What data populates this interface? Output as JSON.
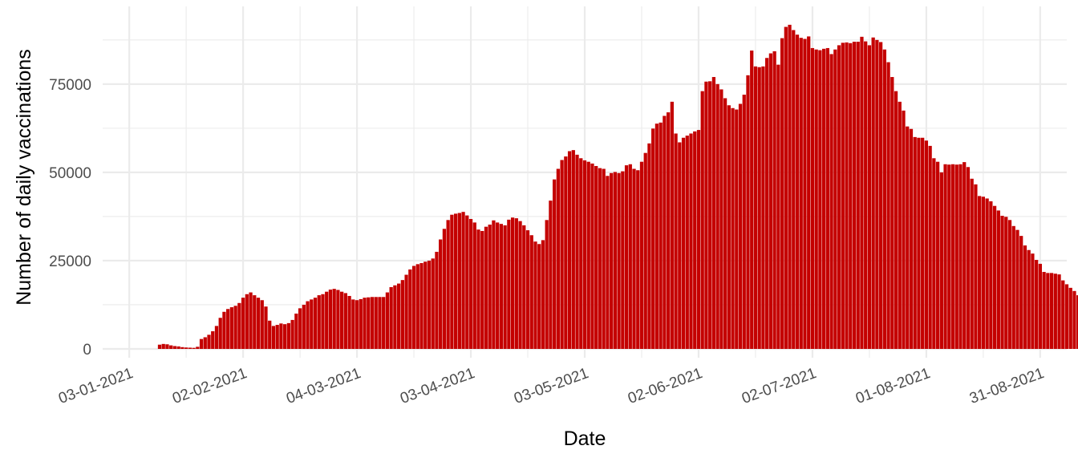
{
  "chart_data": {
    "type": "bar",
    "title": "",
    "xlabel": "Date",
    "ylabel": "Number of daily vaccinations",
    "ylim": [
      -2500,
      97000
    ],
    "y_ticks": [
      0,
      25000,
      50000,
      75000
    ],
    "y_tick_labels": [
      "0",
      "25000",
      "50000",
      "75000"
    ],
    "x_range": [
      "2020-12-27",
      "2021-09-07"
    ],
    "x_ticks": [
      "2021-01-03",
      "2021-02-02",
      "2021-03-04",
      "2021-04-03",
      "2021-05-03",
      "2021-06-02",
      "2021-07-02",
      "2021-08-01",
      "2021-08-31"
    ],
    "x_tick_labels": [
      "03-01-2021",
      "02-02-2021",
      "04-03-2021",
      "03-04-2021",
      "03-05-2021",
      "02-06-2021",
      "02-07-2021",
      "01-08-2021",
      "31-08-2021"
    ],
    "grid": true,
    "bar_color": "#c40000",
    "series": [
      {
        "name": "",
        "start_date": "2021-01-11",
        "values": [
          1200,
          1400,
          1300,
          1000,
          800,
          700,
          500,
          400,
          350,
          300,
          600,
          2800,
          3300,
          4000,
          5000,
          6500,
          8800,
          10500,
          11300,
          11800,
          12200,
          13000,
          14500,
          15500,
          16000,
          15200,
          14500,
          13800,
          12000,
          8000,
          6500,
          6800,
          7200,
          7000,
          7300,
          8200,
          10000,
          11500,
          12500,
          13500,
          14000,
          14500,
          15200,
          15500,
          16200,
          16800,
          17000,
          16700,
          16200,
          15800,
          15000,
          14000,
          13800,
          14100,
          14500,
          14600,
          14700,
          14700,
          14700,
          14700,
          16000,
          17500,
          18000,
          18500,
          19500,
          21000,
          22500,
          23500,
          24000,
          24300,
          24700,
          25000,
          25600,
          27500,
          31000,
          34000,
          36500,
          38000,
          38300,
          38500,
          38800,
          37800,
          36800,
          35800,
          33800,
          33400,
          34600,
          35200,
          36400,
          35800,
          35400,
          35000,
          36600,
          37200,
          37000,
          36200,
          35000,
          33600,
          32200,
          30400,
          29700,
          30800,
          36500,
          42000,
          48000,
          51000,
          53500,
          54500,
          56000,
          56300,
          55000,
          54000,
          53400,
          53000,
          52500,
          51800,
          51200,
          51000,
          49000,
          49800,
          50100,
          49800,
          50300,
          52000,
          52300,
          51000,
          50600,
          53000,
          55500,
          58200,
          62400,
          63800,
          64100,
          66000,
          67000,
          70000,
          61000,
          58500,
          59800,
          60400,
          61000,
          61600,
          62000,
          73000,
          75700,
          75800,
          77000,
          75000,
          73500,
          71000,
          69000,
          68200,
          67800,
          69400,
          72000,
          77500,
          84500,
          80000,
          79800,
          80000,
          82400,
          83700,
          84300,
          80500,
          88000,
          91200,
          91800,
          90300,
          89000,
          88100,
          87800,
          88500,
          85200,
          84800,
          84600,
          85000,
          85200,
          83500,
          84800,
          86000,
          86700,
          86800,
          86600,
          87000,
          87000,
          88400,
          87100,
          86000,
          88200,
          87500,
          86900,
          84800,
          81200,
          77000,
          73000,
          70000,
          67500,
          63000,
          62300,
          60000,
          59800,
          59800,
          59000,
          57500,
          54000,
          53000,
          50000,
          52300,
          52200,
          52300,
          52200,
          52300,
          52900,
          51500,
          48200,
          46600,
          43300,
          43100,
          42600,
          41800,
          40500,
          39200,
          37700,
          37400,
          36500,
          34800,
          33700,
          32000,
          29300,
          28000,
          27000,
          25200,
          24100,
          21800,
          21500,
          21500,
          21300,
          21100,
          19400,
          18300,
          17300,
          16400,
          15200,
          13500
        ]
      }
    ]
  }
}
